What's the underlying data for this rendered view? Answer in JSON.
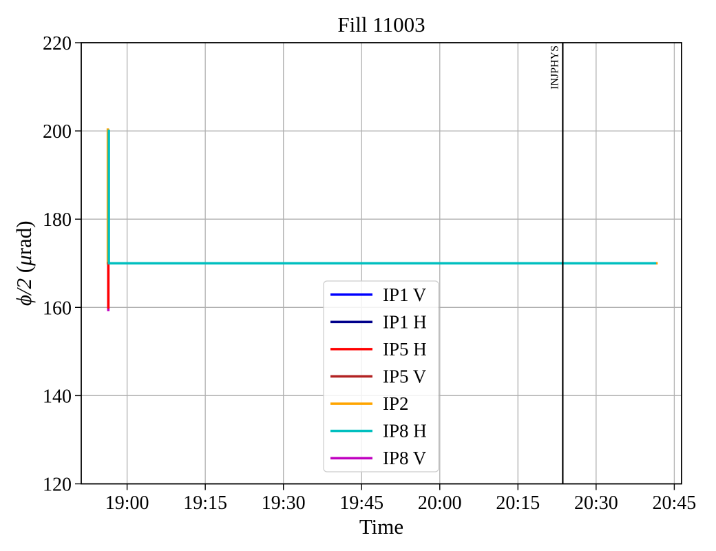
{
  "figure_title": "Fill 11003",
  "chart_data": {
    "type": "line",
    "title": "Fill 11003",
    "xlabel": "Time",
    "ylabel": "ϕ/2 (μrad)",
    "ylabel_parts": [
      {
        "text": "ϕ/2",
        "italic": true
      },
      {
        "text": " (",
        "italic": false
      },
      {
        "text": "μ",
        "italic": true
      },
      {
        "text": "rad)",
        "italic": false
      }
    ],
    "x_unit": "minutes_since_midnight",
    "xlim_minutes": [
      1131.2,
      1246.4
    ],
    "ylim": [
      120,
      220
    ],
    "yticks": [
      120,
      140,
      160,
      180,
      200,
      220
    ],
    "xticks": [
      {
        "minutes": 1140,
        "label": "19:00"
      },
      {
        "minutes": 1155,
        "label": "19:15"
      },
      {
        "minutes": 1170,
        "label": "19:30"
      },
      {
        "minutes": 1185,
        "label": "19:45"
      },
      {
        "minutes": 1200,
        "label": "20:00"
      },
      {
        "minutes": 1215,
        "label": "20:15"
      },
      {
        "minutes": 1230,
        "label": "20:30"
      },
      {
        "minutes": 1245,
        "label": "20:45"
      }
    ],
    "grid": true,
    "grid_color": "#b0b0b0",
    "background": "#ffffff",
    "legend_position": "inside lower-center",
    "series": [
      {
        "name": "IP1 V",
        "color": "#0000ff",
        "zorder": 1,
        "points": []
      },
      {
        "name": "IP1 H",
        "color": "#00008b",
        "zorder": 1,
        "points": []
      },
      {
        "name": "IP5 H",
        "color": "#ff0000",
        "zorder": 4,
        "points": [
          [
            1136.4,
            160
          ],
          [
            1136.4,
            170
          ],
          [
            1241.3,
            170
          ]
        ]
      },
      {
        "name": "IP5 V",
        "color": "#b22222",
        "zorder": 1,
        "points": []
      },
      {
        "name": "IP2",
        "color": "#ffa500",
        "zorder": 3,
        "points": [
          [
            1136.3,
            200.3
          ],
          [
            1136.3,
            170
          ],
          [
            1241.6,
            170
          ]
        ]
      },
      {
        "name": "IP8 H",
        "color": "#00bfbf",
        "zorder": 5,
        "points": [
          [
            1136.5,
            200
          ],
          [
            1136.5,
            170
          ],
          [
            1241.3,
            170
          ]
        ]
      },
      {
        "name": "IP8 V",
        "color": "#c000c0",
        "zorder": 2,
        "points": [
          [
            1136.4,
            159.4
          ],
          [
            1136.4,
            170
          ]
        ]
      }
    ],
    "annotations": [
      {
        "label": "INJPHYS",
        "minutes": 1223.6,
        "color": "#000000"
      }
    ]
  }
}
